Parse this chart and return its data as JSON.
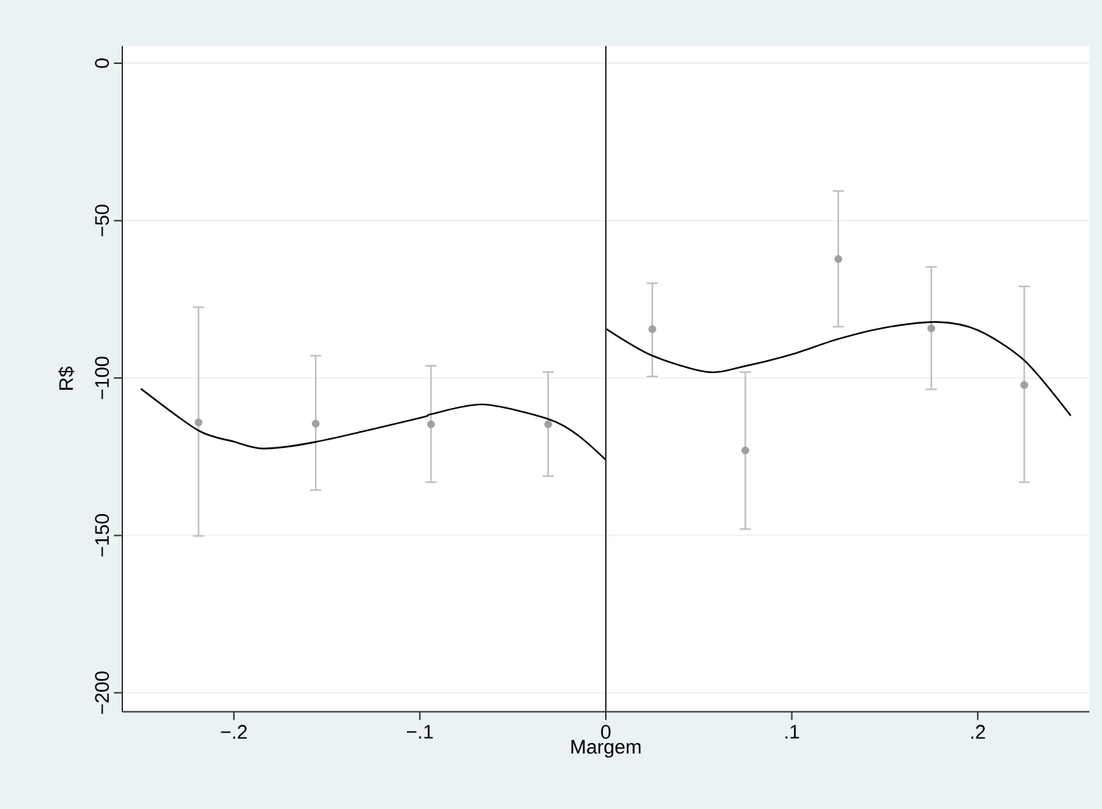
{
  "chart_data": {
    "type": "scatter",
    "xlabel": "Margem",
    "ylabel": "R$",
    "xlim": [
      -0.26,
      0.26
    ],
    "ylim": [
      -206,
      5.5
    ],
    "xticks": [
      {
        "value": -0.2,
        "label": "−.2"
      },
      {
        "value": -0.1,
        "label": "−.1"
      },
      0,
      {
        "value": 0.1,
        "label": ".1"
      },
      {
        "value": 0.2,
        "label": ".2"
      }
    ],
    "yticks": [
      {
        "value": -200,
        "label": "−200"
      },
      {
        "value": -150,
        "label": "−150"
      },
      {
        "value": -100,
        "label": "−100"
      },
      {
        "value": -50,
        "label": "−50"
      },
      0
    ],
    "grid": "y",
    "ref_lines": [
      {
        "axis": "x",
        "value": 0,
        "color": "#333333"
      }
    ],
    "series": [
      {
        "marker": "circle",
        "color": "#a0a0a0",
        "x": [
          -0.219,
          -0.156,
          -0.094,
          -0.031,
          0.025,
          0.075,
          0.125,
          0.175,
          0.225
        ],
        "values": [
          -114.1,
          -114.5,
          -114.7,
          -114.7,
          -84.5,
          -123.0,
          -62.2,
          -84.2,
          -102.2
        ],
        "errors": [
          [
            -150.2,
            -77.5
          ],
          [
            -135.6,
            -92.9
          ],
          [
            -133.1,
            -96.1
          ],
          [
            -131.2,
            -98.1
          ],
          [
            -99.5,
            -69.9
          ],
          [
            -148.0,
            -98.1
          ],
          [
            -83.7,
            -40.6
          ],
          [
            -103.6,
            -64.7
          ],
          [
            -133.1,
            -70.9
          ]
        ]
      },
      {
        "type": "line",
        "marker": "none",
        "color": "#000000",
        "x": [
          -0.25,
          -0.219,
          -0.2,
          -0.184,
          -0.156,
          -0.1,
          -0.094,
          -0.066,
          -0.031,
          -0.015,
          0
        ],
        "values": [
          -103.4,
          -116.7,
          -120.2,
          -122.4,
          -120.3,
          -112.7,
          -111.5,
          -108.4,
          -113.0,
          -118.2,
          -126.0
        ]
      },
      {
        "type": "line",
        "marker": "none",
        "color": "#000000",
        "x": [
          0,
          0.025,
          0.055,
          0.075,
          0.1,
          0.125,
          0.15,
          0.178,
          0.2,
          0.225,
          0.25
        ],
        "values": [
          -84.3,
          -92.9,
          -98.1,
          -96.2,
          -92.5,
          -87.6,
          -84.0,
          -82.2,
          -84.8,
          -94.4,
          -112.0
        ]
      }
    ]
  }
}
